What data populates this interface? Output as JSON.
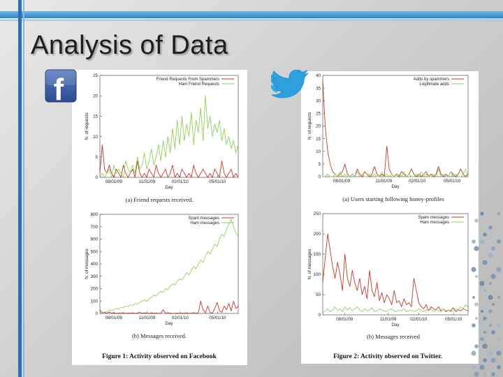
{
  "slide": {
    "title": "Analysis of Data"
  },
  "logos": {
    "facebook": {
      "glyph": "f",
      "color": "#3b5998"
    },
    "twitter": {
      "color": "#35a8e0"
    }
  },
  "facebook": {
    "figure_caption": "Figure 1:  Activity observed on Facebook"
  },
  "twitter": {
    "figure_caption": "Figure 2:  Activity observed on Twitter."
  },
  "chart_data": [
    {
      "type": "line",
      "id": "fb_a",
      "caption": "(a) Friend requests received.",
      "xlabel": "Day",
      "ylabel": "N. of requests",
      "ylim": [
        0,
        25
      ],
      "yticks": [
        "0",
        "5",
        "10",
        "15",
        "20",
        "25"
      ],
      "xticks": [
        "08/01/09",
        "11/01/09",
        "02/01/10",
        "05/01/10"
      ],
      "xtick_pos": [
        0.1,
        0.34,
        0.58,
        0.85
      ],
      "series": [
        {
          "name": "Friend Requests From Spammers",
          "color": "#c0392b",
          "values": [
            1,
            8,
            2,
            1,
            3,
            1,
            0,
            2,
            1,
            0,
            3,
            1,
            0,
            1,
            2,
            0,
            4,
            1,
            0,
            1,
            0,
            2,
            1,
            0,
            3,
            1,
            0,
            1,
            2,
            0,
            1,
            3,
            0,
            1,
            0,
            2,
            1,
            0,
            1,
            0,
            3,
            1,
            0,
            1,
            2,
            1,
            0,
            1,
            0,
            2,
            1,
            0,
            4,
            1,
            0,
            1,
            2,
            0,
            1,
            0
          ]
        },
        {
          "name": "Ham Friend Requests",
          "color": "#8fd15a",
          "values": [
            0,
            1,
            0,
            1,
            2,
            0,
            3,
            1,
            2,
            1,
            0,
            4,
            2,
            1,
            3,
            1,
            5,
            2,
            3,
            6,
            2,
            4,
            7,
            3,
            5,
            8,
            4,
            9,
            5,
            10,
            6,
            12,
            7,
            14,
            8,
            15,
            9,
            13,
            10,
            16,
            8,
            14,
            11,
            17,
            9,
            20,
            12,
            15,
            10,
            13,
            11,
            14,
            9,
            12,
            8,
            10,
            7,
            9,
            6,
            8
          ]
        }
      ]
    },
    {
      "type": "line",
      "id": "fb_b",
      "caption": "(b) Messages received.",
      "xlabel": "Day",
      "ylabel": "N. of messages",
      "ylim": [
        0,
        800
      ],
      "yticks": [
        "0",
        "100",
        "200",
        "300",
        "400",
        "500",
        "600",
        "700",
        "800"
      ],
      "xticks": [
        "08/01/09",
        "11/01/09",
        "02/01/10",
        "05/01/10"
      ],
      "xtick_pos": [
        0.1,
        0.34,
        0.58,
        0.85
      ],
      "series": [
        {
          "name": "Spam messages",
          "color": "#c0392b",
          "values": [
            30,
            5,
            8,
            2,
            10,
            3,
            5,
            1,
            4,
            2,
            6,
            1,
            3,
            2,
            5,
            1,
            4,
            8,
            2,
            5,
            3,
            1,
            6,
            2,
            4,
            1,
            3,
            30,
            2,
            5,
            3,
            1,
            2,
            4,
            1,
            3,
            2,
            5,
            1,
            3,
            6,
            2,
            4,
            100,
            30,
            5,
            60,
            8,
            3,
            40,
            90,
            20,
            10,
            60,
            30,
            80,
            20,
            100,
            40,
            60
          ]
        },
        {
          "name": "Ham messages",
          "color": "#8fd15a",
          "values": [
            5,
            8,
            12,
            15,
            20,
            25,
            30,
            40,
            35,
            50,
            45,
            60,
            55,
            70,
            65,
            80,
            75,
            90,
            100,
            110,
            95,
            120,
            130,
            150,
            140,
            160,
            180,
            170,
            200,
            190,
            220,
            240,
            230,
            260,
            280,
            270,
            300,
            330,
            310,
            350,
            380,
            360,
            400,
            430,
            410,
            460,
            500,
            480,
            520,
            560,
            540,
            600,
            640,
            620,
            680,
            720,
            760,
            700,
            650,
            620
          ]
        }
      ]
    },
    {
      "type": "line",
      "id": "tw_a",
      "caption": "(a) Users starting following honey-profiles",
      "xlabel": "Day",
      "ylabel": "N. of requests",
      "ylim": [
        0,
        40
      ],
      "yticks": [
        "0",
        "5",
        "10",
        "15",
        "20",
        "25",
        "30",
        "35",
        "40"
      ],
      "xticks": [
        "08/01/09",
        "11/01/09",
        "02/01/10",
        "05/01/10"
      ],
      "xtick_pos": [
        0.13,
        0.42,
        0.65,
        0.89
      ],
      "series": [
        {
          "name": "Adds by spammers",
          "color": "#c0392b",
          "values": [
            38,
            20,
            10,
            5,
            2,
            1,
            0,
            1,
            2,
            5,
            1,
            0,
            1,
            0,
            3,
            1,
            0,
            2,
            1,
            0,
            1,
            4,
            1,
            0,
            1,
            0,
            12,
            3,
            1,
            0,
            1,
            0,
            2,
            1,
            0,
            1,
            3,
            1,
            0,
            1,
            0,
            1,
            2,
            0,
            1,
            0,
            1,
            4,
            1,
            0,
            1,
            0,
            2,
            1,
            0,
            1,
            3,
            1,
            0,
            1
          ]
        },
        {
          "name": "Legitimate adds",
          "color": "#8fd15a",
          "values": [
            0,
            0,
            1,
            0,
            0,
            1,
            0,
            2,
            0,
            1,
            0,
            0,
            1,
            0,
            2,
            0,
            1,
            0,
            0,
            1,
            0,
            1,
            0,
            0,
            2,
            0,
            1,
            0,
            1,
            0,
            0,
            1,
            0,
            2,
            0,
            1,
            0,
            0,
            1,
            0,
            2,
            0,
            1,
            0,
            0,
            1,
            0,
            3,
            0,
            1,
            0,
            0,
            2,
            0,
            1,
            0,
            0,
            1,
            3,
            0
          ]
        }
      ]
    },
    {
      "type": "line",
      "id": "tw_b",
      "caption": "(b) Messages received",
      "xlabel": "Day",
      "ylabel": "N. of messages",
      "ylim": [
        0,
        250
      ],
      "yticks": [
        "0",
        "50",
        "100",
        "150",
        "200",
        "250"
      ],
      "xticks": [
        "08/01/09",
        "11/01/09",
        "02/01/10",
        "05/01/10"
      ],
      "xtick_pos": [
        0.15,
        0.45,
        0.66,
        0.9
      ],
      "series": [
        {
          "name": "Spam messages",
          "color": "#c0392b",
          "values": [
            80,
            140,
            200,
            160,
            120,
            90,
            130,
            100,
            60,
            150,
            90,
            70,
            110,
            80,
            60,
            90,
            50,
            70,
            40,
            110,
            60,
            45,
            80,
            35,
            55,
            30,
            50,
            40,
            25,
            60,
            30,
            35,
            20,
            40,
            25,
            30,
            20,
            90,
            60,
            30,
            20,
            15,
            25,
            10,
            20,
            15,
            12,
            20,
            10,
            15,
            8,
            12,
            10,
            18,
            8,
            12,
            10,
            15,
            12,
            10
          ]
        },
        {
          "name": "Ham messages",
          "color": "#8fd15a",
          "values": [
            5,
            10,
            15,
            8,
            12,
            20,
            10,
            15,
            8,
            20,
            12,
            18,
            10,
            15,
            20,
            12,
            8,
            15,
            10,
            12,
            18,
            8,
            10,
            15,
            12,
            10,
            8,
            12,
            15,
            10,
            8,
            12,
            10,
            15,
            8,
            10,
            12,
            8,
            10,
            15,
            10,
            8,
            12,
            10,
            15,
            8,
            12,
            10,
            8,
            15,
            10,
            12,
            8,
            10,
            15,
            12,
            20,
            15,
            25,
            18
          ]
        }
      ]
    }
  ]
}
